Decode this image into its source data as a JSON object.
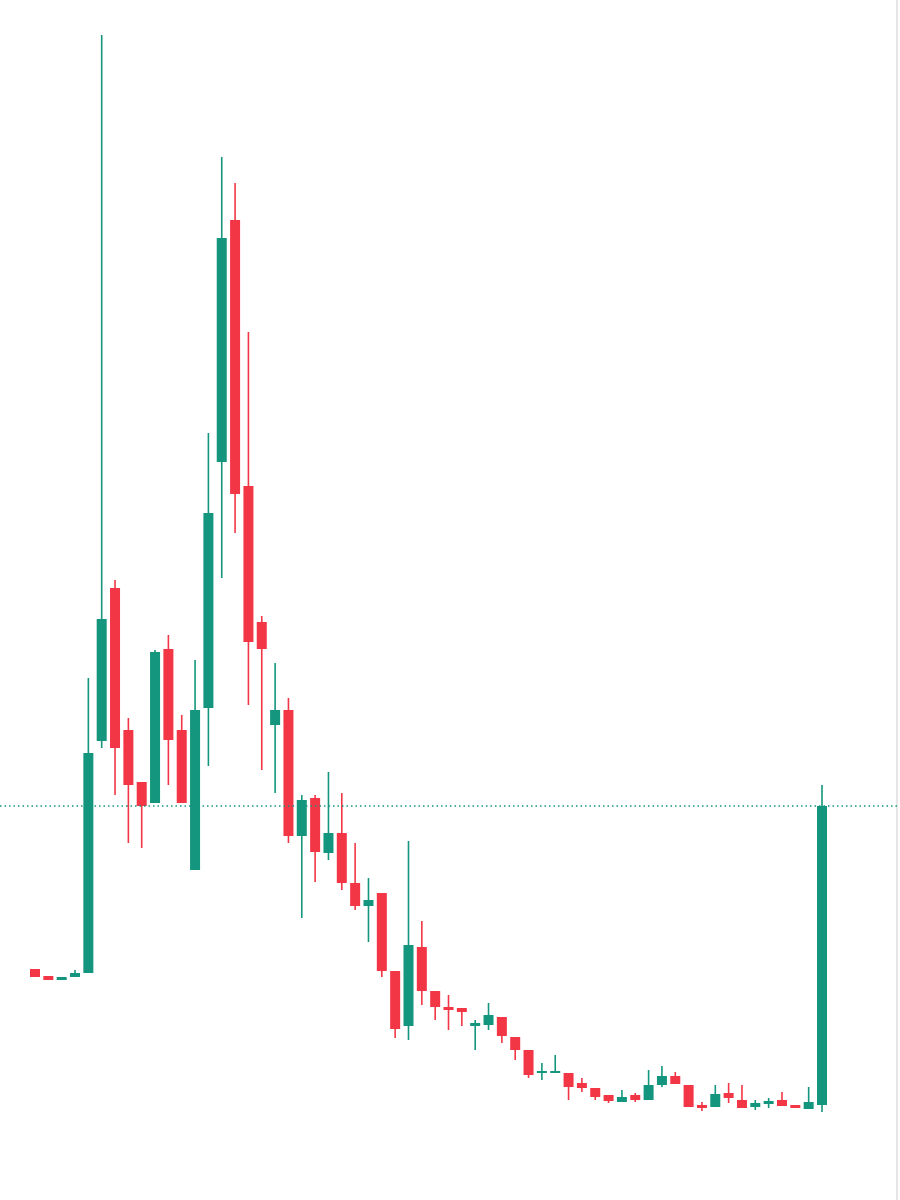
{
  "chart_data": {
    "type": "candlestick",
    "ylim": [
      0,
      1200
    ],
    "up_color": "#13967d",
    "down_color": "#f23645",
    "last_price_line": true,
    "open": [
      231,
      224,
      220,
      223,
      227,
      459,
      612,
      470,
      418,
      397,
      551,
      470,
      330,
      492,
      738,
      980,
      714,
      578,
      475,
      490,
      364,
      402,
      347,
      367,
      317,
      294,
      307,
      229,
      174,
      253,
      209,
      193,
      192,
      174,
      175,
      183,
      163,
      150,
      127,
      127,
      127,
      117,
      112,
      105,
      98,
      105,
      100,
      115,
      124,
      115,
      95,
      93,
      107,
      100,
      93,
      96,
      100,
      95,
      91,
      95
    ],
    "high": [
      231,
      224,
      223,
      230,
      522,
      1165,
      620,
      482,
      418,
      550,
      565,
      485,
      540,
      767,
      1043,
      1017,
      868,
      584,
      537,
      502,
      405,
      405,
      428,
      407,
      357,
      322,
      307,
      229,
      359,
      279,
      209,
      205,
      192,
      180,
      197,
      183,
      163,
      150,
      137,
      145,
      127,
      122,
      112,
      105,
      110,
      107,
      130,
      134,
      128,
      115,
      98,
      115,
      117,
      115,
      100,
      102,
      108,
      95,
      113,
      415
    ],
    "low": [
      223,
      220,
      220,
      223,
      227,
      452,
      405,
      357,
      352,
      397,
      415,
      397,
      330,
      434,
      622,
      667,
      495,
      430,
      407,
      357,
      282,
      318,
      340,
      310,
      290,
      258,
      223,
      162,
      160,
      195,
      180,
      170,
      174,
      150,
      170,
      157,
      140,
      122,
      120,
      127,
      100,
      108,
      100,
      97,
      98,
      98,
      100,
      113,
      116,
      93,
      89,
      93,
      97,
      92,
      90,
      92,
      94,
      92,
      91,
      88
    ],
    "close": [
      223,
      220,
      223,
      227,
      447,
      581,
      452,
      415,
      394,
      548,
      460,
      397,
      490,
      687,
      962,
      706,
      558,
      551,
      490,
      364,
      400,
      348,
      367,
      317,
      294,
      300,
      229,
      171,
      255,
      209,
      193,
      190,
      188,
      177,
      185,
      164,
      150,
      125,
      129,
      129,
      113,
      112,
      103,
      99,
      103,
      100,
      115,
      124,
      116,
      93,
      92,
      106,
      102,
      92,
      97,
      99,
      94,
      92,
      98,
      394
    ]
  }
}
